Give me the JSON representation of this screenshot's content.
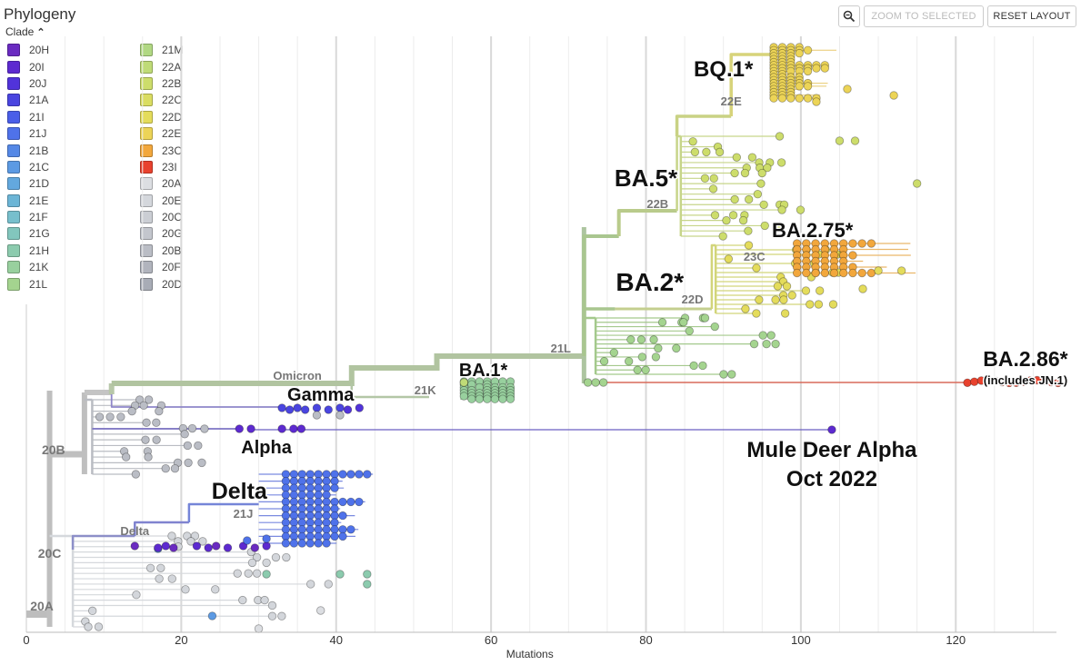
{
  "header": {
    "title": "Phylogeny",
    "clade_toggle": "Clade",
    "zoom_selected_label": "ZOOM TO SELECTED",
    "reset_layout_label": "RESET LAYOUT"
  },
  "legend": {
    "items": [
      {
        "label": "20H",
        "color": "#6a2bc1"
      },
      {
        "label": "20I",
        "color": "#5d2ad0"
      },
      {
        "label": "20J",
        "color": "#5133da"
      },
      {
        "label": "21A",
        "color": "#4a45e0"
      },
      {
        "label": "21I",
        "color": "#4a5ee8"
      },
      {
        "label": "21J",
        "color": "#4f72ea"
      },
      {
        "label": "21B",
        "color": "#5588e6"
      },
      {
        "label": "21C",
        "color": "#5c9ae3"
      },
      {
        "label": "21D",
        "color": "#63a8de"
      },
      {
        "label": "21E",
        "color": "#6cb5d6"
      },
      {
        "label": "21F",
        "color": "#77bfcc"
      },
      {
        "label": "21G",
        "color": "#82c6bd"
      },
      {
        "label": "21H",
        "color": "#8ccbae"
      },
      {
        "label": "21K",
        "color": "#98d09e"
      },
      {
        "label": "21L",
        "color": "#a4d48f"
      },
      {
        "label": "21M",
        "color": "#b1d883"
      },
      {
        "label": "22A",
        "color": "#bfdb77"
      },
      {
        "label": "22B",
        "color": "#cddd6b"
      },
      {
        "label": "22C",
        "color": "#dadd62"
      },
      {
        "label": "22D",
        "color": "#e4dc5b"
      },
      {
        "label": "22E",
        "color": "#ecd457"
      },
      {
        "label": "23C",
        "color": "#f2a73c"
      },
      {
        "label": "23I",
        "color": "#e8422e"
      },
      {
        "label": "20A",
        "color": "#dcdee2"
      },
      {
        "label": "20E",
        "color": "#d4d7dc"
      },
      {
        "label": "20C",
        "color": "#cbced4"
      },
      {
        "label": "20G",
        "color": "#c3c6cd"
      },
      {
        "label": "20B",
        "color": "#babdc5"
      },
      {
        "label": "20F",
        "color": "#b1b4bd"
      },
      {
        "label": "20D",
        "color": "#a8acb6"
      }
    ]
  },
  "chart_data": {
    "type": "scatter",
    "subtype": "phylogenetic-tree",
    "title": "Phylogeny",
    "xlabel": "Mutations",
    "ylabel": "",
    "xlim": [
      0,
      135
    ],
    "xticks": [
      0,
      20,
      40,
      60,
      80,
      100,
      120
    ],
    "grid": true,
    "branch_labels": [
      {
        "text": "20A",
        "x": 2
      },
      {
        "text": "20B",
        "x": 3.5
      },
      {
        "text": "20C",
        "x": 3
      },
      {
        "text": "Delta",
        "x": 14
      },
      {
        "text": "21J",
        "x": 28
      },
      {
        "text": "Omicron",
        "x": 35
      },
      {
        "text": "21K",
        "x": 51.5
      },
      {
        "text": "21L",
        "x": 69
      },
      {
        "text": "22B",
        "x": 81.5
      },
      {
        "text": "22D",
        "x": 86
      },
      {
        "text": "22E",
        "x": 91
      },
      {
        "text": "23C",
        "x": 94
      }
    ],
    "annotations": [
      {
        "text": "Gamma",
        "x": 38
      },
      {
        "text": "Alpha",
        "x": 31
      },
      {
        "text": "Delta",
        "x": 27.5
      },
      {
        "text": "BA.1*",
        "x": 59
      },
      {
        "text": "BA.2*",
        "x": 80.5
      },
      {
        "text": "BA.5*",
        "x": 80
      },
      {
        "text": "BQ.1*",
        "x": 90
      },
      {
        "text": "BA.2.75*",
        "x": 101.5
      },
      {
        "text": "BA.2.86*",
        "x": 129
      },
      {
        "text": "(includes JN.1)",
        "x": 129
      },
      {
        "text": "Mule Deer Alpha",
        "x": 104
      },
      {
        "text": "Oct 2022",
        "x": 104
      }
    ],
    "notable_tips": [
      {
        "name": "Mule Deer Alpha",
        "mutations": 104,
        "clade": "20I"
      },
      {
        "name": "BA.2.86*",
        "mutations_range": [
          122,
          134
        ],
        "clade": "23I"
      }
    ]
  }
}
